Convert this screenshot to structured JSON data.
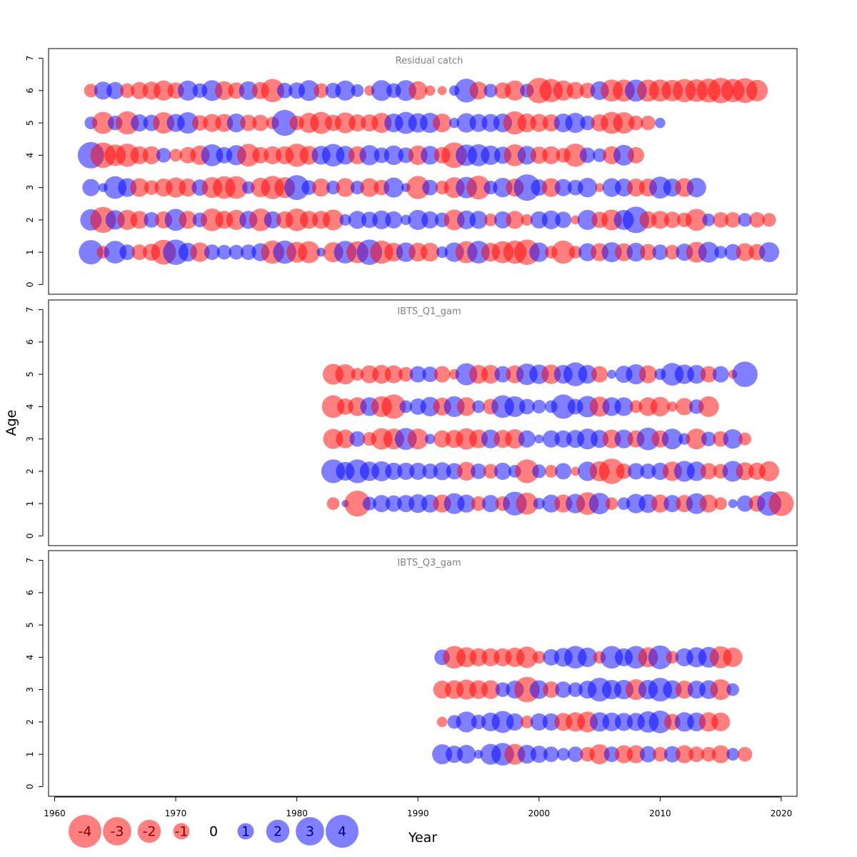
{
  "chart_data": {
    "type": "scatter",
    "encoding": "bubble",
    "xlabel": "Year",
    "ylabel": "Age",
    "xlim": [
      1959.5,
      2021.3
    ],
    "ylim": [
      -0.3,
      7.3
    ],
    "x_ticks": [
      1960,
      1970,
      1980,
      1990,
      2000,
      2010,
      2020
    ],
    "y_ticks": [
      0,
      1,
      2,
      3,
      4,
      5,
      6,
      7
    ],
    "colors": {
      "positive": "#0000ff",
      "negative": "#ff0000",
      "opacity": 0.5
    },
    "legend": {
      "placement": "bottom-left",
      "labels": [
        "-4",
        "-3",
        "-2",
        "-1",
        "0",
        "1",
        "2",
        "3",
        "4"
      ],
      "values": [
        -4,
        -3,
        -2,
        -1,
        0,
        1,
        2,
        3,
        4
      ]
    },
    "panels": [
      {
        "title": "Residual catch",
        "year_start": 1963,
        "ages": [
          1,
          2,
          3,
          4,
          5,
          6
        ],
        "residuals": {
          "1": [
            2.2,
            -0.6,
            1.9,
            0.9,
            -0.9,
            -1.1,
            -2.3,
            2.4,
            1.3,
            -1.4,
            0.9,
            0.8,
            0.8,
            0.9,
            1.2,
            -2.0,
            2.0,
            -1.6,
            -1.8,
            0.3,
            -1.5,
            1.9,
            -1.8,
            2.4,
            -2.0,
            -1.3,
            1.4,
            -1.3,
            -1.3,
            0.5,
            1.4,
            -1.8,
            1.9,
            -1.3,
            -1.8,
            -2.0,
            -2.4,
            1.4,
            -0.6,
            -2.0,
            -0.6,
            1.2,
            -1.2,
            1.5,
            -1.2,
            1.3,
            -1.0,
            0.9,
            -0.8,
            1.1,
            -1.6,
            1.6,
            0.6,
            1.0,
            -1.2,
            -1.0,
            1.5
          ],
          "2": [
            1.7,
            -2.5,
            1.4,
            -1.5,
            -1.2,
            0.9,
            -1.1,
            1.8,
            -1.2,
            0.8,
            -1.9,
            -1.2,
            -1.5,
            1.2,
            -1.9,
            1.1,
            -1.1,
            -1.9,
            -1.2,
            -1.2,
            -1.6,
            0.5,
            1.2,
            1.0,
            1.3,
            1.1,
            0.4,
            1.5,
            1.1,
            0.8,
            -1.6,
            1.3,
            1.2,
            -0.6,
            1.1,
            -1.2,
            -0.5,
            1.1,
            1.3,
            1.0,
            -0.3,
            1.5,
            -1.0,
            -1.6,
            1.5,
            2.6,
            -1.1,
            -1.2,
            -1.0,
            -0.8,
            -1.8,
            0.6,
            -0.9,
            -0.9,
            0.7,
            -0.9,
            -0.7
          ],
          "3": [
            1.1,
            0.3,
            1.9,
            1.3,
            -1.3,
            -0.8,
            -1.2,
            -1.5,
            -1.2,
            1.0,
            -1.6,
            -1.9,
            -1.9,
            0.6,
            -1.4,
            -2.0,
            -1.6,
            2.3,
            0.8,
            -1.2,
            0.7,
            -1.3,
            0.7,
            -1.3,
            -0.9,
            1.5,
            0.3,
            -2.0,
            0.9,
            -0.7,
            -1.6,
            1.7,
            -2.1,
            0.7,
            1.4,
            -1.2,
            2.6,
            1.0,
            -1.3,
            1.1,
            0.9,
            1.4,
            -0.3,
            1.3,
            1.2,
            -1.2,
            -1.2,
            1.8,
            1.2,
            -1.3,
            1.4
          ],
          "4": [
            2.6,
            -2.4,
            -1.7,
            -2.0,
            -1.2,
            -1.2,
            0.8,
            -0.6,
            -1.0,
            -1.4,
            1.8,
            1.0,
            1.5,
            -1.9,
            -1.0,
            -1.2,
            -1.2,
            -2.0,
            -1.3,
            1.3,
            1.9,
            1.3,
            -1.2,
            1.5,
            0.9,
            1.4,
            0.9,
            -1.4,
            1.3,
            -1.0,
            -2.4,
            1.7,
            1.8,
            1.4,
            1.1,
            -1.8,
            1.3,
            -1.1,
            -1.2,
            -0.8,
            -2.0,
            0.9,
            0.7,
            -1.2,
            1.6,
            -1.0
          ],
          "5": [
            0.6,
            -1.8,
            0.8,
            -2.0,
            1.1,
            1.0,
            -1.7,
            1.2,
            1.7,
            -0.9,
            -1.2,
            -1.2,
            1.3,
            -1.0,
            -1.0,
            -0.6,
            2.5,
            -0.8,
            -1.5,
            -1.8,
            -1.0,
            -1.6,
            -1.1,
            -1.1,
            -1.5,
            1.3,
            1.8,
            1.4,
            1.5,
            -1.3,
            0.4,
            1.4,
            1.2,
            1.2,
            1.3,
            -2.0,
            -1.3,
            -1.2,
            -1.1,
            1.3,
            1.5,
            0.8,
            -1.1,
            -1.8,
            -1.7,
            -0.8,
            -0.8,
            0.4
          ],
          "6": [
            -0.7,
            1.2,
            1.1,
            -0.8,
            -1.1,
            -1.2,
            -1.5,
            -1.0,
            1.5,
            0.8,
            1.6,
            -1.3,
            -1.0,
            1.3,
            -1.1,
            -2.0,
            0.9,
            1.0,
            1.6,
            -0.8,
            0.9,
            1.5,
            0.6,
            -0.4,
            1.6,
            0.8,
            1.6,
            -1.3,
            -0.4,
            -0.3,
            0.4,
            2.1,
            -1.2,
            0.7,
            -1.0,
            -1.5,
            0.7,
            -2.4,
            -2.0,
            -1.5,
            -1.1,
            -0.9,
            1.3,
            -1.8,
            -1.8,
            1.8,
            -1.8,
            -1.8,
            -1.7,
            -2.0,
            -1.9,
            -2.1,
            -2.4,
            -2.0,
            -2.3,
            -1.7
          ]
        }
      },
      {
        "title": "IBTS_Q1_gam",
        "year_start": 1983,
        "ages": [
          1,
          2,
          3,
          4,
          5
        ],
        "residuals": {
          "1": [
            -0.6,
            0.2,
            -2.5,
            0.7,
            1.1,
            1.0,
            1.1,
            1.3,
            1.2,
            -1.2,
            1.6,
            1.2,
            -0.8,
            1.1,
            -0.8,
            2.1,
            -1.8,
            0.5,
            1.2,
            -1.2,
            1.4,
            -1.9,
            1.7,
            -0.6,
            0.6,
            1.4,
            1.3,
            -1.2,
            1.1,
            -1.1,
            1.6,
            -1.2,
            -0.6,
            0.3,
            1.0,
            -1.0,
            2.2,
            -2.3
          ],
          "2": [
            2.1,
            1.3,
            2.1,
            1.4,
            1.5,
            1.1,
            1.1,
            1.1,
            0.9,
            1.2,
            1.0,
            -1.3,
            0.9,
            -0.8,
            1.1,
            0.6,
            -2.1,
            0.7,
            -0.6,
            1.0,
            -0.3,
            1.4,
            -1.5,
            -2.4,
            -0.9,
            1.0,
            0.9,
            1.1,
            -1.4,
            1.6,
            1.4,
            -1.0,
            -0.8,
            1.6,
            -1.2,
            -1.1,
            -1.5
          ],
          "3": [
            -1.5,
            -1.3,
            0.9,
            -0.7,
            -1.7,
            -1.6,
            1.8,
            -1.6,
            0.4,
            -1.1,
            -1.2,
            -1.7,
            -1.3,
            1.3,
            -1.2,
            -1.4,
            1.1,
            0.3,
            1.1,
            1.1,
            1.2,
            1.6,
            1.2,
            -1.3,
            1.3,
            -1.1,
            1.9,
            -1.1,
            1.6,
            0.5,
            -1.6,
            0.8,
            -0.9,
            1.4,
            -0.6
          ],
          "4": [
            -1.9,
            -1.0,
            -1.3,
            1.3,
            -1.6,
            -2.2,
            0.6,
            1.0,
            1.4,
            -1.2,
            1.6,
            -1.3,
            0.6,
            -0.9,
            1.9,
            1.6,
            0.9,
            0.7,
            0.6,
            2.2,
            0.9,
            1.7,
            -1.5,
            1.3,
            1.3,
            -0.6,
            -1.3,
            -1.4,
            -0.4,
            -1.1,
            0.8,
            -1.6
          ],
          "5": [
            -1.6,
            -1.5,
            -0.6,
            -1.2,
            -1.3,
            -1.2,
            -0.8,
            1.0,
            0.9,
            -1.0,
            -0.4,
            1.8,
            -1.3,
            -1.3,
            1.0,
            -1.2,
            1.7,
            1.4,
            -1.4,
            1.3,
            2.1,
            1.3,
            -1.0,
            0.3,
            1.1,
            1.5,
            -1.2,
            0.5,
            1.9,
            1.4,
            1.3,
            -1.0,
            1.0,
            -0.3,
            2.4
          ]
        }
      },
      {
        "title": "IBTS_Q3_gam",
        "year_start": 1992,
        "ages": [
          1,
          2,
          3,
          4
        ],
        "residuals": {
          "1": [
            1.5,
            1.1,
            1.3,
            0.3,
            1.6,
            1.9,
            -1.6,
            1.3,
            1.1,
            0.9,
            0.6,
            0.9,
            -0.8,
            -1.5,
            0.9,
            -1.2,
            -1.2,
            1.0,
            -0.8,
            1.0,
            -1.2,
            -0.9,
            -0.8,
            -1.2,
            0.6,
            -0.8
          ],
          "2": [
            -0.4,
            0.7,
            1.6,
            0.8,
            1.3,
            1.8,
            1.1,
            -0.6,
            1.1,
            1.1,
            -1.2,
            -1.4,
            -1.6,
            1.4,
            1.3,
            1.2,
            1.2,
            1.7,
            1.9,
            -1.0,
            1.4,
            1.3,
            -1.4,
            -1.3
          ],
          "3": [
            -1.2,
            -1.3,
            -1.5,
            -1.3,
            -1.3,
            0.8,
            1.2,
            -2.4,
            1.3,
            -1.0,
            1.0,
            0.8,
            1.2,
            2.1,
            1.4,
            1.4,
            -1.6,
            1.4,
            2.1,
            1.3,
            -1.2,
            1.2,
            1.3,
            -1.6,
            0.6
          ],
          "4": [
            0.9,
            -1.9,
            -1.5,
            -1.2,
            -1.2,
            -1.2,
            -1.4,
            -1.7,
            -0.6,
            1.0,
            1.3,
            1.9,
            1.4,
            -0.6,
            1.9,
            1.2,
            1.9,
            -1.5,
            2.1,
            -0.6,
            1.2,
            1.5,
            1.6,
            -1.8,
            -1.4
          ]
        }
      }
    ]
  }
}
